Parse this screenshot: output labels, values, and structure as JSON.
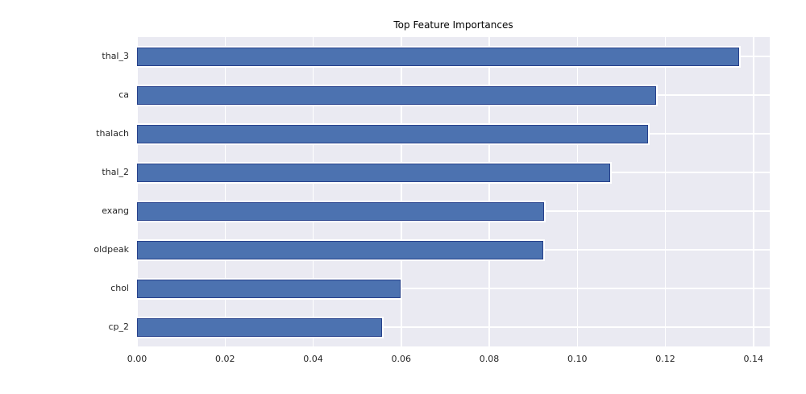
{
  "chart_data": {
    "type": "bar",
    "orientation": "horizontal",
    "title": "Top Feature Importances",
    "categories": [
      "thal_3",
      "ca",
      "thalach",
      "thal_2",
      "exang",
      "oldpeak",
      "chol",
      "cp_2"
    ],
    "values": [
      0.1367,
      0.1179,
      0.116,
      0.1074,
      0.0924,
      0.0922,
      0.0598,
      0.0556
    ],
    "xlabel": "",
    "ylabel": "",
    "xtick_labels": [
      "0.00",
      "0.02",
      "0.04",
      "0.06",
      "0.08",
      "0.10",
      "0.12",
      "0.14"
    ],
    "xtick_values": [
      0.0,
      0.02,
      0.04,
      0.06,
      0.08,
      0.1,
      0.12,
      0.14
    ],
    "xlim": [
      0,
      0.1437
    ],
    "grid": true,
    "legend": false,
    "colors": {
      "bar_fill": "#4c72b0",
      "bar_edge": "#27418b",
      "plot_background": "#eaeaf2",
      "grid_line": "#ffffff",
      "text": "#262626",
      "figure_background": "#ffffff"
    }
  }
}
